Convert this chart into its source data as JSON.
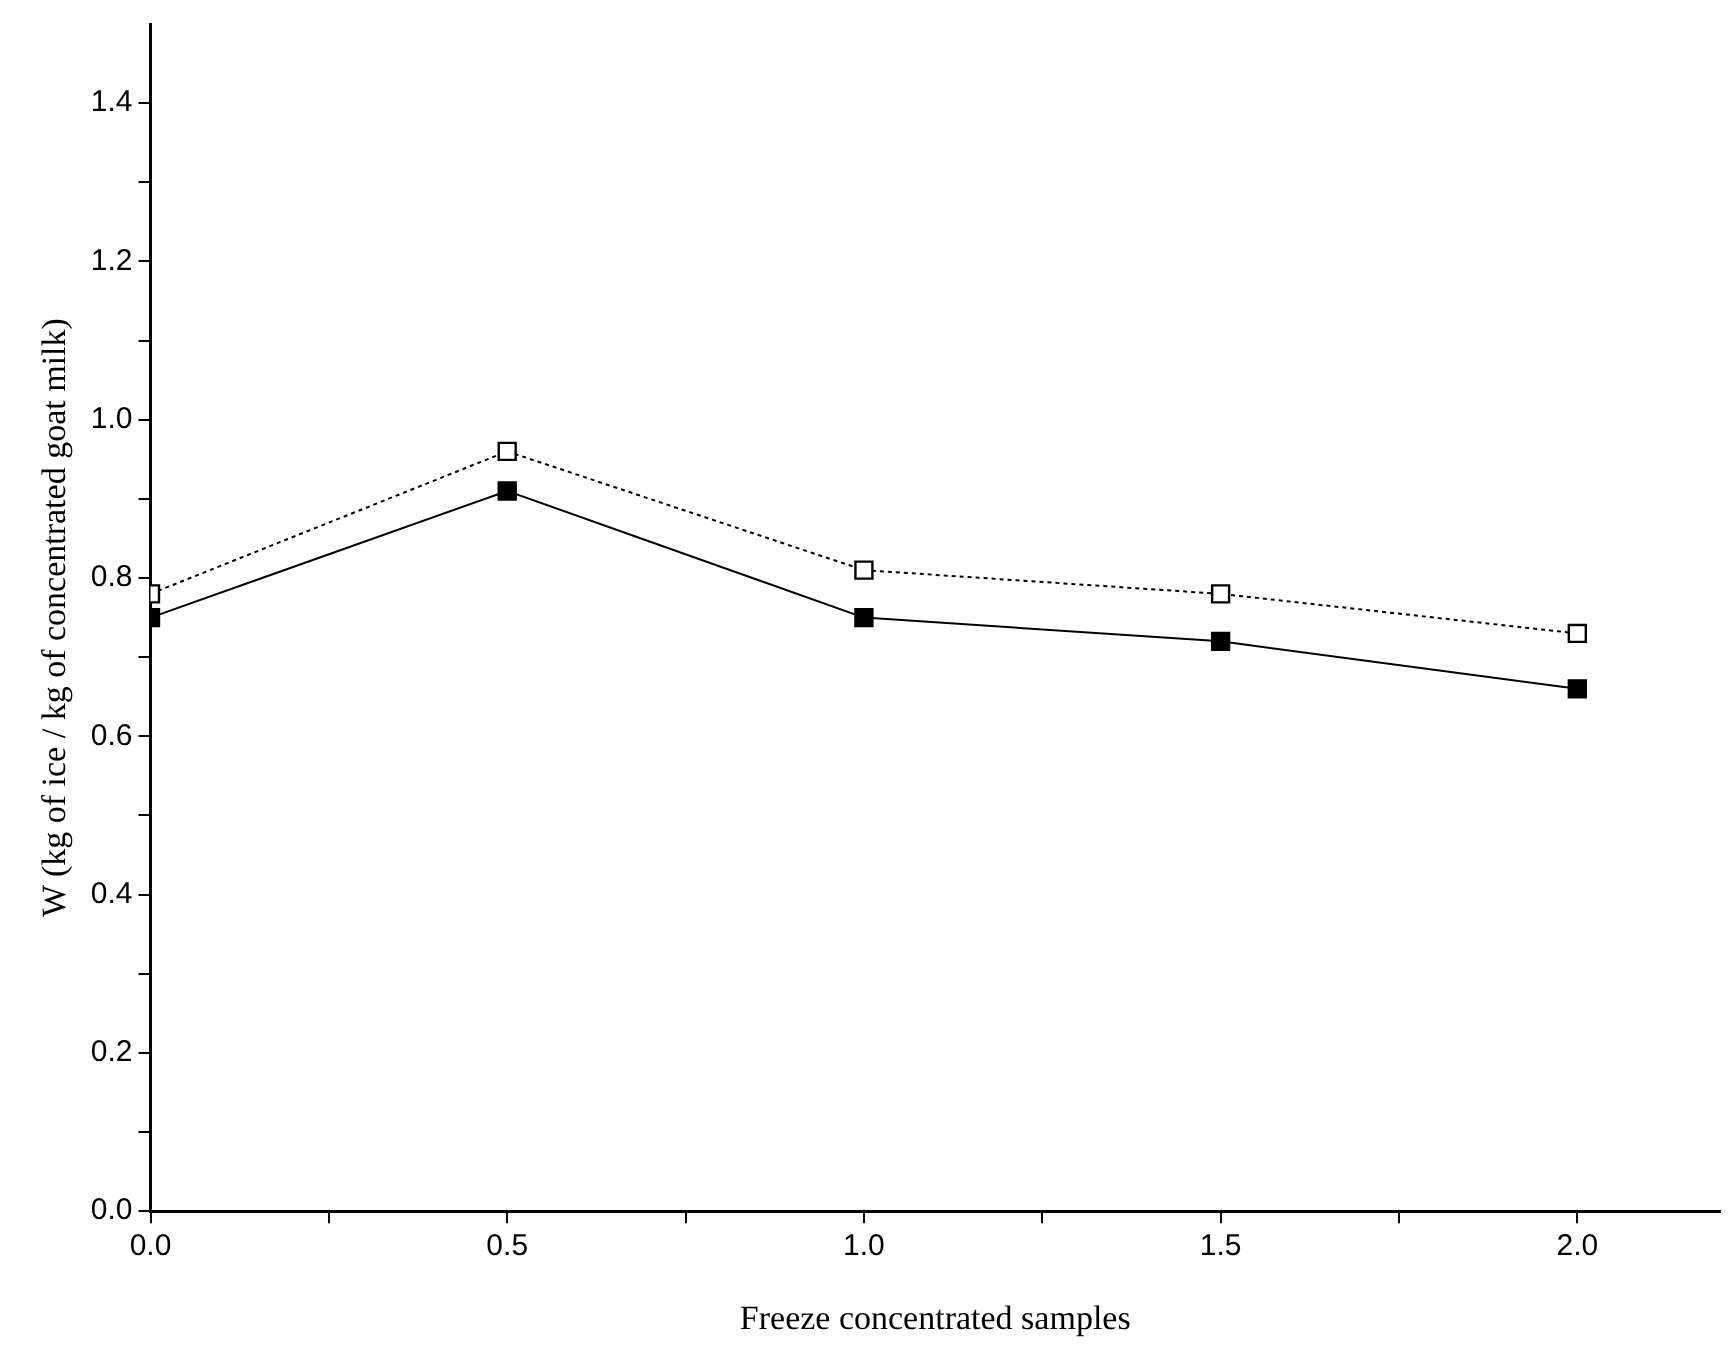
{
  "chart_data": {
    "type": "line",
    "xlabel": "Freeze concentrated samples",
    "ylabel": "W (kg of ice / kg of concentrated goat milk)",
    "x": [
      0,
      0.5,
      1,
      1.5,
      2
    ],
    "series": [
      {
        "color": "#000000",
        "values": [
          0.78,
          0.96,
          0.81,
          0.78,
          0.73
        ],
        "line_style": "dotted",
        "marker": "square"
      },
      {
        "color": "#000000",
        "values": [
          0.75,
          0.91,
          0.75,
          0.72,
          0.66
        ],
        "line_style": "solid",
        "marker": "square"
      }
    ],
    "xlim": [
      0,
      2.2
    ],
    "xticks": [
      {
        "value": 0,
        "label": "0.0"
      },
      {
        "value": 0.25,
        "label": null
      },
      {
        "value": 0.5,
        "label": "0.5"
      },
      {
        "value": 0.75,
        "label": null
      },
      {
        "value": 1,
        "label": "1.0"
      },
      {
        "value": 1.25,
        "label": null
      },
      {
        "value": 1.5,
        "label": "1.5"
      },
      {
        "value": 1.75,
        "label": null
      },
      {
        "value": 2,
        "label": "2.0"
      }
    ],
    "ylim": [
      0,
      1.5
    ],
    "yticks": [
      {
        "value": 0,
        "label": "0.0"
      },
      {
        "value": 0.1,
        "label": null
      },
      0.2,
      {
        "value": 0.3,
        "label": null
      },
      0.4,
      {
        "value": 0.5,
        "label": null
      },
      0.6,
      {
        "value": 0.7,
        "label": null
      },
      0.8,
      {
        "value": 0.9,
        "label": null
      },
      {
        "value": 1,
        "label": "1.0"
      },
      {
        "value": 1.1,
        "label": null
      },
      1.2,
      {
        "value": 1.3,
        "label": null
      },
      1.4
    ],
    "grid": false,
    "legend": false
  }
}
